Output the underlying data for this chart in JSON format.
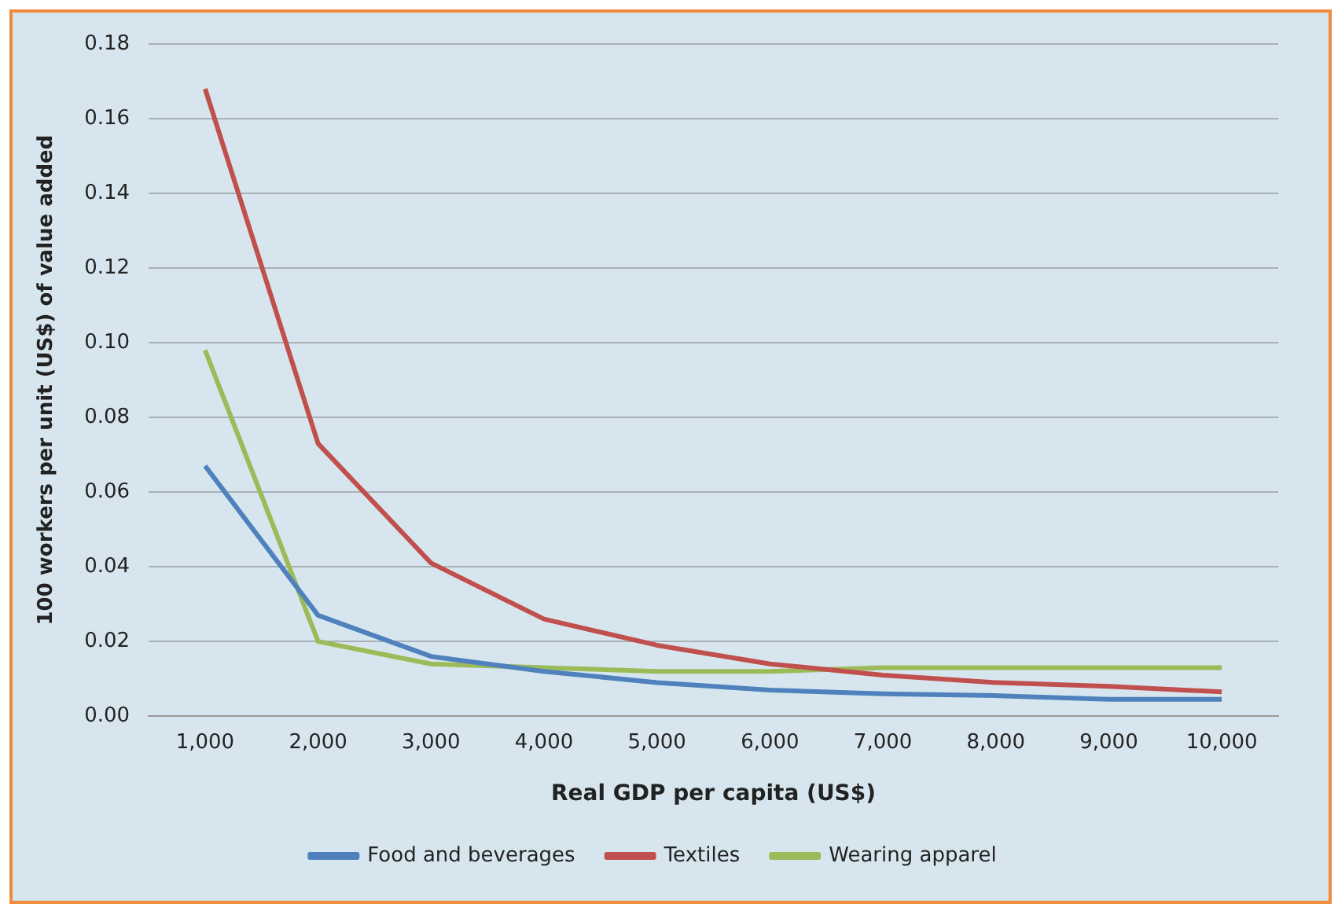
{
  "chart_data": {
    "type": "line",
    "xlabel": "Real GDP per capita (US$)",
    "ylabel": "100 workers per unit (US$) of value added",
    "categories": [
      "1,000",
      "2,000",
      "3,000",
      "4,000",
      "5,000",
      "6,000",
      "7,000",
      "8,000",
      "9,000",
      "10,000"
    ],
    "series": [
      {
        "name": "Food and beverages",
        "color": "#4f81bd",
        "values": [
          0.067,
          0.027,
          0.016,
          0.012,
          0.009,
          0.007,
          0.006,
          0.0055,
          0.0045,
          0.0045
        ]
      },
      {
        "name": "Textiles",
        "color": "#c0504d",
        "values": [
          0.168,
          0.073,
          0.041,
          0.026,
          0.019,
          0.014,
          0.011,
          0.009,
          0.008,
          0.0065
        ]
      },
      {
        "name": "Wearing apparel",
        "color": "#9bbb59",
        "values": [
          0.098,
          0.02,
          0.014,
          0.013,
          0.012,
          0.012,
          0.013,
          0.013,
          0.013,
          0.013
        ]
      }
    ],
    "ylim": [
      0,
      0.18
    ],
    "yticks": [
      {
        "value": 0,
        "label": "0.00"
      },
      {
        "value": 0.02,
        "label": "0.02"
      },
      {
        "value": 0.04,
        "label": "0.04"
      },
      {
        "value": 0.06,
        "label": "0.06"
      },
      {
        "value": 0.08,
        "label": "0.08"
      },
      {
        "value": 0.1,
        "label": "0.10"
      },
      {
        "value": 0.12,
        "label": "0.12"
      },
      {
        "value": 0.14,
        "label": "0.14"
      },
      {
        "value": 0.16,
        "label": "0.16"
      },
      {
        "value": 0.18,
        "label": "0.18"
      }
    ],
    "grid": "y",
    "legend": "bottom",
    "marker": "none",
    "line_style": "solid"
  }
}
